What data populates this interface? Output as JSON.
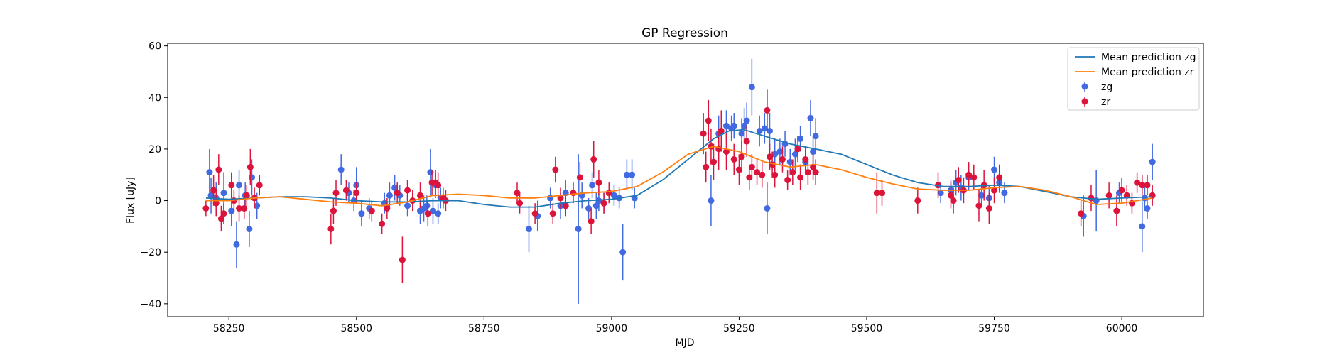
{
  "chart_data": {
    "type": "scatter",
    "title": "GP Regression",
    "xlabel": "MJD",
    "ylabel": "Flux [uJy]",
    "xlim": [
      58130,
      60160
    ],
    "ylim": [
      -45,
      61
    ],
    "xticks": [
      58250,
      58500,
      58750,
      59000,
      59250,
      59500,
      59750,
      60000
    ],
    "yticks": [
      -40,
      -20,
      0,
      20,
      40,
      60
    ],
    "legend": {
      "placement": "top-right",
      "entries": [
        "Mean prediction zg",
        "Mean prediction zr",
        "zg",
        "zr"
      ]
    },
    "grid": false,
    "series": [
      {
        "name": "Mean prediction zg",
        "kind": "line",
        "color": "#1f77b4",
        "x": [
          58205,
          58250,
          58300,
          58350,
          58400,
          58450,
          58500,
          58550,
          58600,
          58650,
          58700,
          58750,
          58800,
          58850,
          58900,
          58950,
          59000,
          59050,
          59100,
          59150,
          59200,
          59230,
          59260,
          59300,
          59350,
          59400,
          59450,
          59500,
          59550,
          59600,
          59650,
          59700,
          59750,
          59800,
          59850,
          59900,
          59950,
          60000,
          60060
        ],
        "y": [
          1,
          0.5,
          1,
          1.5,
          1.5,
          1,
          0,
          -0.5,
          -0.5,
          0,
          0,
          -1.5,
          -2.5,
          -2.5,
          -1,
          0,
          0.5,
          2,
          8,
          16,
          24,
          27,
          27.5,
          25,
          22,
          20,
          18,
          14,
          10,
          7,
          5.5,
          5.5,
          6,
          5.5,
          3.5,
          1.5,
          0.5,
          1,
          1.5
        ]
      },
      {
        "name": "Mean prediction zr",
        "kind": "line",
        "color": "#ff7f0e",
        "x": [
          58205,
          58250,
          58300,
          58350,
          58400,
          58450,
          58500,
          58550,
          58600,
          58650,
          58700,
          58750,
          58800,
          58850,
          58900,
          58950,
          59000,
          59050,
          59100,
          59150,
          59200,
          59250,
          59300,
          59350,
          59400,
          59450,
          59500,
          59550,
          59600,
          59650,
          59700,
          59750,
          59800,
          59850,
          59900,
          59950,
          60000,
          60060
        ],
        "y": [
          0,
          0,
          1,
          1.5,
          0.5,
          -0.5,
          -1,
          -2,
          -0.5,
          2,
          2.5,
          2,
          1,
          1,
          2,
          3,
          3.5,
          5.5,
          11,
          18,
          21,
          19,
          15,
          13,
          14,
          12,
          9,
          6.5,
          4.5,
          4,
          4,
          5,
          5.5,
          4,
          1.5,
          -1.5,
          -1,
          1
        ]
      },
      {
        "name": "zg",
        "kind": "errorbar",
        "color": "#4169e1",
        "points": [
          [
            58212,
            11,
            9
          ],
          [
            58215,
            2,
            7
          ],
          [
            58225,
            1,
            6
          ],
          [
            58240,
            3,
            8
          ],
          [
            58255,
            -4,
            6
          ],
          [
            58265,
            -17,
            9
          ],
          [
            58270,
            6,
            6
          ],
          [
            58282,
            2,
            5
          ],
          [
            58290,
            -11,
            7
          ],
          [
            58295,
            9,
            7
          ],
          [
            58305,
            -2,
            5
          ],
          [
            58470,
            12,
            6
          ],
          [
            58485,
            3,
            4
          ],
          [
            58495,
            0,
            4
          ],
          [
            58500,
            6,
            7
          ],
          [
            58510,
            -5,
            5
          ],
          [
            58525,
            -3,
            4
          ],
          [
            58555,
            -1,
            4
          ],
          [
            58565,
            2,
            5
          ],
          [
            58575,
            5,
            5
          ],
          [
            58585,
            2,
            4
          ],
          [
            58600,
            -2,
            4
          ],
          [
            58625,
            -4,
            5
          ],
          [
            58632,
            -3,
            5
          ],
          [
            58638,
            -2,
            4
          ],
          [
            58645,
            11,
            9
          ],
          [
            58650,
            -4,
            5
          ],
          [
            58655,
            6,
            5
          ],
          [
            58660,
            -5,
            4
          ],
          [
            58665,
            1,
            4
          ],
          [
            58838,
            -11,
            9
          ],
          [
            58855,
            -6,
            6
          ],
          [
            58880,
            1,
            4
          ],
          [
            58900,
            -2,
            5
          ],
          [
            58910,
            3,
            5
          ],
          [
            58935,
            -11,
            29
          ],
          [
            58942,
            2,
            5
          ],
          [
            58955,
            -3,
            4
          ],
          [
            58962,
            6,
            5
          ],
          [
            58970,
            -2,
            5
          ],
          [
            58975,
            0,
            4
          ],
          [
            58985,
            -1,
            4
          ],
          [
            59005,
            2,
            4
          ],
          [
            59015,
            1,
            4
          ],
          [
            59022,
            -20,
            11
          ],
          [
            59030,
            10,
            6
          ],
          [
            59040,
            10,
            6
          ],
          [
            59045,
            1,
            4
          ],
          [
            59195,
            0,
            10
          ],
          [
            59210,
            26,
            7
          ],
          [
            59225,
            29,
            6
          ],
          [
            59235,
            28,
            5
          ],
          [
            59240,
            29,
            5
          ],
          [
            59255,
            26,
            6
          ],
          [
            59260,
            29,
            7
          ],
          [
            59265,
            31,
            7
          ],
          [
            59275,
            44,
            11
          ],
          [
            59290,
            27,
            6
          ],
          [
            59300,
            28,
            6
          ],
          [
            59305,
            -3,
            10
          ],
          [
            59310,
            27,
            7
          ],
          [
            59320,
            18,
            6
          ],
          [
            59330,
            19,
            5
          ],
          [
            59340,
            22,
            5
          ],
          [
            59350,
            15,
            5
          ],
          [
            59360,
            18,
            6
          ],
          [
            59370,
            24,
            5
          ],
          [
            59380,
            15,
            5
          ],
          [
            59390,
            32,
            7
          ],
          [
            59395,
            19,
            6
          ],
          [
            59400,
            25,
            7
          ],
          [
            59645,
            3,
            4
          ],
          [
            59665,
            4,
            4
          ],
          [
            59675,
            7,
            5
          ],
          [
            59685,
            5,
            5
          ],
          [
            59700,
            9,
            5
          ],
          [
            59725,
            2,
            4
          ],
          [
            59740,
            1,
            5
          ],
          [
            59750,
            12,
            5
          ],
          [
            59760,
            7,
            4
          ],
          [
            59770,
            3,
            4
          ],
          [
            59925,
            -6,
            8
          ],
          [
            59950,
            0,
            12
          ],
          [
            59995,
            3,
            4
          ],
          [
            60040,
            -10,
            10
          ],
          [
            60045,
            1,
            5
          ],
          [
            60050,
            -3,
            4
          ],
          [
            60060,
            15,
            7
          ]
        ]
      },
      {
        "name": "zr",
        "kind": "errorbar",
        "color": "#dc143c",
        "points": [
          [
            58205,
            -3,
            3
          ],
          [
            58220,
            4,
            6
          ],
          [
            58225,
            -1,
            5
          ],
          [
            58230,
            12,
            6
          ],
          [
            58235,
            -7,
            5
          ],
          [
            58240,
            -5,
            4
          ],
          [
            58255,
            6,
            5
          ],
          [
            58260,
            0,
            4
          ],
          [
            58270,
            -3,
            5
          ],
          [
            58280,
            -3,
            4
          ],
          [
            58285,
            2,
            4
          ],
          [
            58292,
            13,
            7
          ],
          [
            58300,
            1,
            4
          ],
          [
            58310,
            6,
            4
          ],
          [
            58450,
            -11,
            6
          ],
          [
            58455,
            -4,
            5
          ],
          [
            58460,
            3,
            5
          ],
          [
            58480,
            4,
            4
          ],
          [
            58500,
            3,
            4
          ],
          [
            58530,
            -4,
            4
          ],
          [
            58550,
            -9,
            4
          ],
          [
            58560,
            -3,
            4
          ],
          [
            58580,
            3,
            4
          ],
          [
            58590,
            -23,
            9
          ],
          [
            58600,
            4,
            4
          ],
          [
            58610,
            0,
            4
          ],
          [
            58625,
            2,
            5
          ],
          [
            58640,
            -5,
            5
          ],
          [
            58648,
            7,
            5
          ],
          [
            58655,
            7,
            5
          ],
          [
            58660,
            6,
            5
          ],
          [
            58670,
            1,
            4
          ],
          [
            58675,
            0,
            4
          ],
          [
            58815,
            3,
            4
          ],
          [
            58820,
            -1,
            4
          ],
          [
            58850,
            -5,
            4
          ],
          [
            58885,
            -5,
            4
          ],
          [
            58890,
            12,
            5
          ],
          [
            58900,
            1,
            4
          ],
          [
            58910,
            -2,
            4
          ],
          [
            58925,
            3,
            4
          ],
          [
            58938,
            9,
            6
          ],
          [
            58960,
            -8,
            5
          ],
          [
            58965,
            16,
            7
          ],
          [
            58975,
            7,
            5
          ],
          [
            58985,
            -1,
            4
          ],
          [
            58995,
            3,
            4
          ],
          [
            59180,
            26,
            8
          ],
          [
            59185,
            13,
            6
          ],
          [
            59190,
            31,
            8
          ],
          [
            59195,
            21,
            7
          ],
          [
            59200,
            15,
            7
          ],
          [
            59210,
            20,
            8
          ],
          [
            59215,
            27,
            8
          ],
          [
            59225,
            19,
            7
          ],
          [
            59240,
            16,
            6
          ],
          [
            59250,
            12,
            6
          ],
          [
            59255,
            17,
            6
          ],
          [
            59265,
            23,
            6
          ],
          [
            59270,
            9,
            5
          ],
          [
            59275,
            13,
            5
          ],
          [
            59285,
            11,
            5
          ],
          [
            59295,
            10,
            5
          ],
          [
            59305,
            35,
            8
          ],
          [
            59310,
            17,
            5
          ],
          [
            59315,
            14,
            5
          ],
          [
            59320,
            10,
            5
          ],
          [
            59335,
            16,
            5
          ],
          [
            59345,
            8,
            4
          ],
          [
            59355,
            11,
            5
          ],
          [
            59365,
            20,
            5
          ],
          [
            59370,
            9,
            5
          ],
          [
            59380,
            16,
            5
          ],
          [
            59385,
            11,
            5
          ],
          [
            59395,
            13,
            5
          ],
          [
            59400,
            11,
            5
          ],
          [
            59520,
            3,
            8
          ],
          [
            59530,
            3,
            5
          ],
          [
            59600,
            0,
            5
          ],
          [
            59640,
            6,
            5
          ],
          [
            59665,
            2,
            5
          ],
          [
            59670,
            0,
            5
          ],
          [
            59680,
            8,
            5
          ],
          [
            59690,
            4,
            5
          ],
          [
            59700,
            10,
            5
          ],
          [
            59710,
            9,
            5
          ],
          [
            59720,
            -2,
            6
          ],
          [
            59730,
            6,
            6
          ],
          [
            59740,
            -3,
            6
          ],
          [
            59750,
            4,
            5
          ],
          [
            59760,
            9,
            5
          ],
          [
            59920,
            -5,
            5
          ],
          [
            59940,
            1,
            5
          ],
          [
            59975,
            2,
            5
          ],
          [
            59990,
            -4,
            6
          ],
          [
            60000,
            4,
            5
          ],
          [
            60010,
            2,
            4
          ],
          [
            60020,
            -1,
            4
          ],
          [
            60030,
            7,
            4
          ],
          [
            60040,
            6,
            4
          ],
          [
            60050,
            6,
            4
          ],
          [
            60060,
            2,
            4
          ]
        ]
      }
    ]
  }
}
